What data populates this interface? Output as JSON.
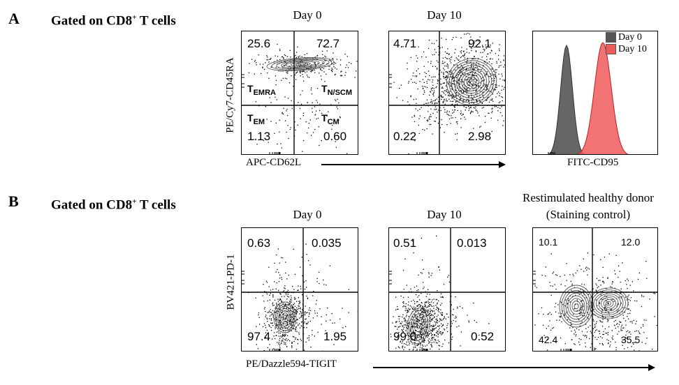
{
  "panel_A": {
    "letter": "A",
    "gate_prefix": "Gated on CD8",
    "gate_sup": "+",
    "gate_suffix": " T cells",
    "xlabel": "APC-CD62L",
    "ylabel": "PE/Cy7-CD45RA",
    "hist_xlabel": "FITC-CD95"
  },
  "panel_B": {
    "letter": "B",
    "gate_prefix": "Gated on CD8",
    "gate_sup": "+",
    "gate_suffix": " T cells",
    "xlabel": "PE/Dazzle594-TIGIT",
    "ylabel": "BV421-PD-1",
    "control_title_line1": "Restimulated healthy donor",
    "control_title_line2": "(Staining control)"
  },
  "subsets": {
    "emra": {
      "T": "T",
      "sub": "EMRA"
    },
    "nscm": {
      "T": "T",
      "sub": "N/SCM"
    },
    "em": {
      "T": "T",
      "sub": "EM"
    },
    "cm": {
      "T": "T",
      "sub": "CM"
    }
  },
  "colors": {
    "day0": "#555555",
    "day10": "#f05a5a"
  },
  "chart_data": [
    {
      "type": "scatter",
      "title": "Day 0",
      "xlabel": "APC-CD62L",
      "ylabel": "PE/Cy7-CD45RA",
      "quadrants": {
        "top_left": "25.6",
        "top_right": "72.7",
        "bottom_left": "1.13",
        "bottom_right": "0.60"
      }
    },
    {
      "type": "scatter",
      "title": "Day 10",
      "xlabel": "APC-CD62L",
      "ylabel": "PE/Cy7-CD45RA",
      "quadrants": {
        "top_left": "4.71",
        "top_right": "92.1",
        "bottom_left": "0.22",
        "bottom_right": "2.98"
      }
    },
    {
      "type": "area",
      "xlabel": "FITC-CD95",
      "legend": [
        "Day 0",
        "Day 10"
      ],
      "legend_position": "top-right"
    },
    {
      "type": "scatter",
      "title": "Day 0",
      "xlabel": "PE/Dazzle594-TIGIT",
      "ylabel": "BV421-PD-1",
      "quadrants": {
        "top_left": "0.63",
        "top_right": "0.035",
        "bottom_left": "97.4",
        "bottom_right": "1.95"
      }
    },
    {
      "type": "scatter",
      "title": "Day 10",
      "xlabel": "PE/Dazzle594-TIGIT",
      "ylabel": "BV421-PD-1",
      "quadrants": {
        "top_left": "0.51",
        "top_right": "0.013",
        "bottom_left": "99.0",
        "bottom_right": "0.52"
      }
    },
    {
      "type": "scatter",
      "title": "Restimulated healthy donor (Staining control)",
      "xlabel": "PE/Dazzle594-TIGIT",
      "ylabel": "BV421-PD-1",
      "quadrants": {
        "top_left": "10.1",
        "top_right": "12.0",
        "bottom_left": "42.4",
        "bottom_right": "35.5"
      }
    }
  ]
}
